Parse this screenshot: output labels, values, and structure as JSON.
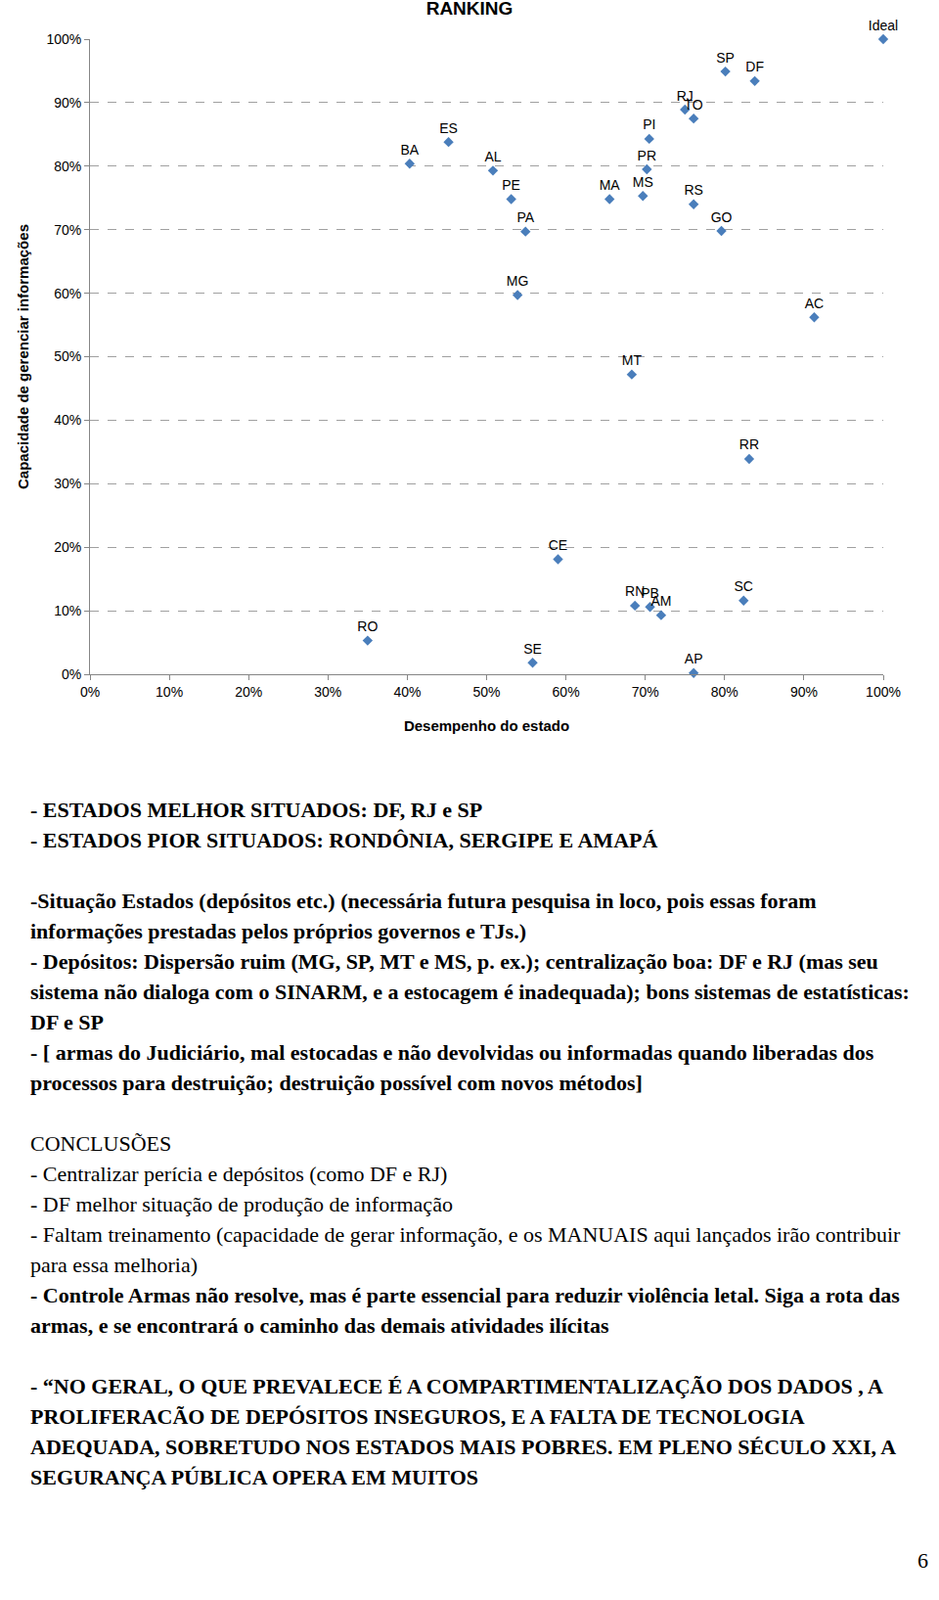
{
  "chart_data": {
    "type": "scatter",
    "title": "RANKING",
    "x_label": "Desempenho do estado",
    "y_label": "Capacidade de gerenciar informações",
    "labels": [
      "Ideal",
      "SP",
      "DF",
      "RJ",
      "TO",
      "PI",
      "PR",
      "MA",
      "MS",
      "RS",
      "GO",
      "BA",
      "ES",
      "AL",
      "PE",
      "PA",
      "MG",
      "MT",
      "AC",
      "RR",
      "CE",
      "RN",
      "PB",
      "AM",
      "SC",
      "RO",
      "SE",
      "AP"
    ],
    "x": [
      100,
      80.1,
      83.8,
      75.0,
      76.1,
      70.5,
      70.2,
      65.5,
      69.7,
      76.1,
      79.6,
      40.3,
      45.2,
      50.8,
      53.1,
      54.9,
      53.9,
      68.3,
      91.3,
      83.1,
      59.0,
      68.7,
      70.6,
      72.0,
      82.4,
      35.0,
      55.8,
      76.1
    ],
    "values": [
      100,
      94.9,
      93.4,
      88.9,
      87.5,
      84.3,
      79.5,
      74.8,
      75.3,
      74.0,
      69.8,
      80.4,
      83.8,
      79.3,
      74.8,
      69.7,
      59.7,
      47.2,
      56.2,
      33.9,
      18.1,
      10.8,
      10.6,
      9.3,
      11.6,
      5.3,
      1.8,
      0.2
    ],
    "color": "#4a7ebb",
    "marker": "diamond",
    "grid": true,
    "xlim": [
      0,
      100
    ],
    "ylim": [
      0,
      100
    ],
    "xticks": [
      {
        "value": 0,
        "label": "0%"
      },
      {
        "value": 10,
        "label": "10%"
      },
      {
        "value": 20,
        "label": "20%"
      },
      {
        "value": 30,
        "label": "30%"
      },
      {
        "value": 40,
        "label": "40%"
      },
      {
        "value": 50,
        "label": "50%"
      },
      {
        "value": 60,
        "label": "60%"
      },
      {
        "value": 70,
        "label": "70%"
      },
      {
        "value": 80,
        "label": "80%"
      },
      {
        "value": 90,
        "label": "90%"
      },
      {
        "value": 100,
        "label": "100%"
      }
    ],
    "yticks": [
      {
        "value": 0,
        "label": "0%"
      },
      {
        "value": 10,
        "label": "10%"
      },
      {
        "value": 20,
        "label": "20%"
      },
      {
        "value": 30,
        "label": "30%"
      },
      {
        "value": 40,
        "label": "40%"
      },
      {
        "value": 50,
        "label": "50%"
      },
      {
        "value": 60,
        "label": "60%"
      },
      {
        "value": 70,
        "label": "70%"
      },
      {
        "value": 80,
        "label": "80%"
      },
      {
        "value": 90,
        "label": "90%"
      },
      {
        "value": 100,
        "label": "100%"
      }
    ]
  },
  "document": {
    "groups": [
      [
        {
          "text": "- ESTADOS MELHOR SITUADOS:  DF, RJ e SP",
          "bold": true
        },
        {
          "text": "- ESTADOS PIOR SITUADOS:  RONDÔNIA, SERGIPE E AMAPÁ",
          "bold": true
        }
      ],
      [
        {
          "text": "-Situação Estados (depósitos etc.) (necessária futura pesquisa in loco, pois essas foram informações prestadas pelos próprios governos e TJs.)",
          "bold": true
        },
        {
          "text": "- Depósitos: Dispersão ruim (MG, SP, MT e MS, p. ex.); centralização boa: DF e RJ (mas seu sistema não dialoga com o SINARM, e a estocagem é inadequada); bons sistemas de estatísticas: DF e SP",
          "bold": true
        },
        {
          "text": "- [ armas do Judiciário, mal estocadas e não devolvidas ou informadas quando liberadas dos processos para destruição; destruição possível com novos métodos]",
          "bold": true
        }
      ],
      [
        {
          "text": "CONCLUSÕES",
          "bold": false
        },
        {
          "text": "- Centralizar perícia e depósitos (como DF e RJ)",
          "bold": false
        },
        {
          "text": "- DF melhor situação de produção de informação",
          "bold": false
        },
        {
          "text": "- Faltam treinamento (capacidade de gerar informação, e os MANUAIS aqui lançados irão contribuir para essa melhoria)",
          "bold": false
        },
        {
          "text": "- Controle Armas não resolve, mas é parte essencial para reduzir violência letal. Siga a rota das armas, e se encontrará o caminho das demais atividades ilícitas",
          "bold": true
        }
      ],
      [
        {
          "text": "- “NO GERAL, O QUE PREVALECE É A COMPARTIMENTALIZAÇÃO DOS DADOS , A PROLIFERACÃO DE DEPÓSITOS INSEGUROS, E A FALTA DE TECNOLOGIA ADEQUADA, SOBRETUDO NOS ESTADOS MAIS POBRES. EM PLENO SÉCULO XXI, A SEGURANÇA PÚBLICA OPERA EM MUITOS",
          "bold": true
        }
      ]
    ],
    "page_number": "6"
  }
}
